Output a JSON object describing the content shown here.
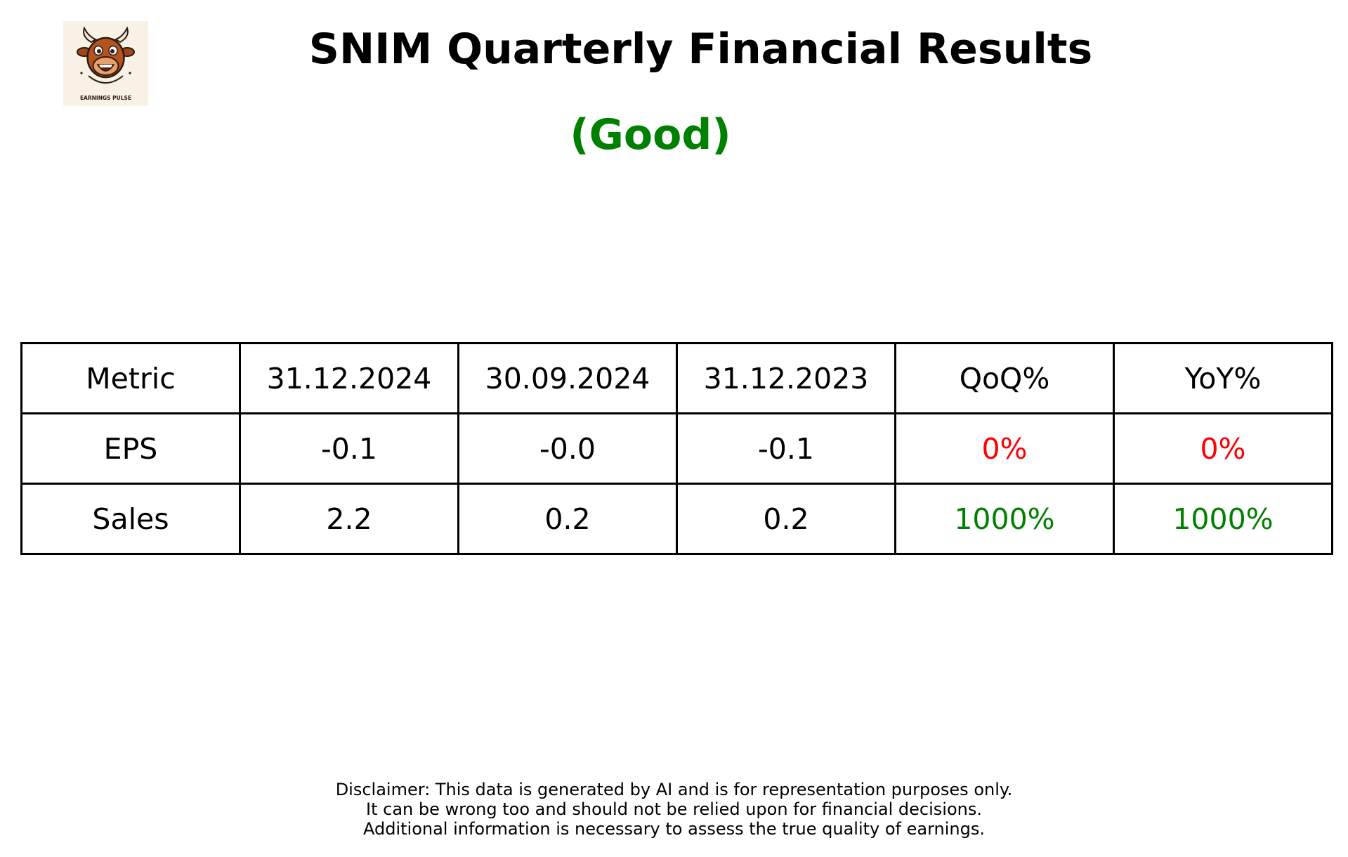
{
  "logo": {
    "caption": "EARNINGS PULSE",
    "icon": "bull-mascot-icon"
  },
  "title": "SNIM Quarterly Financial Results",
  "subtitle": "(Good)",
  "colors": {
    "good": "#008000",
    "bad": "#ff0000",
    "border": "#000000",
    "text": "#000000"
  },
  "chart_data": {
    "type": "table",
    "header": [
      "Metric",
      "31.12.2024",
      "30.09.2024",
      "31.12.2023",
      "QoQ%",
      "YoY%"
    ],
    "rows": [
      {
        "metric": "EPS",
        "values": [
          "-0.1",
          "-0.0",
          "-0.1"
        ],
        "qoq": "0%",
        "yoy": "0%",
        "qoq_color": "#ff0000",
        "yoy_color": "#ff0000"
      },
      {
        "metric": "Sales",
        "values": [
          "2.2",
          "0.2",
          "0.2"
        ],
        "qoq": "1000%",
        "yoy": "1000%",
        "qoq_color": "#008000",
        "yoy_color": "#008000"
      }
    ]
  },
  "disclaimer": [
    "Disclaimer: This data is generated by AI and is for representation purposes only.",
    "It can be wrong too and should not be relied upon for financial decisions.",
    "Additional information is necessary to assess the true quality of earnings."
  ]
}
